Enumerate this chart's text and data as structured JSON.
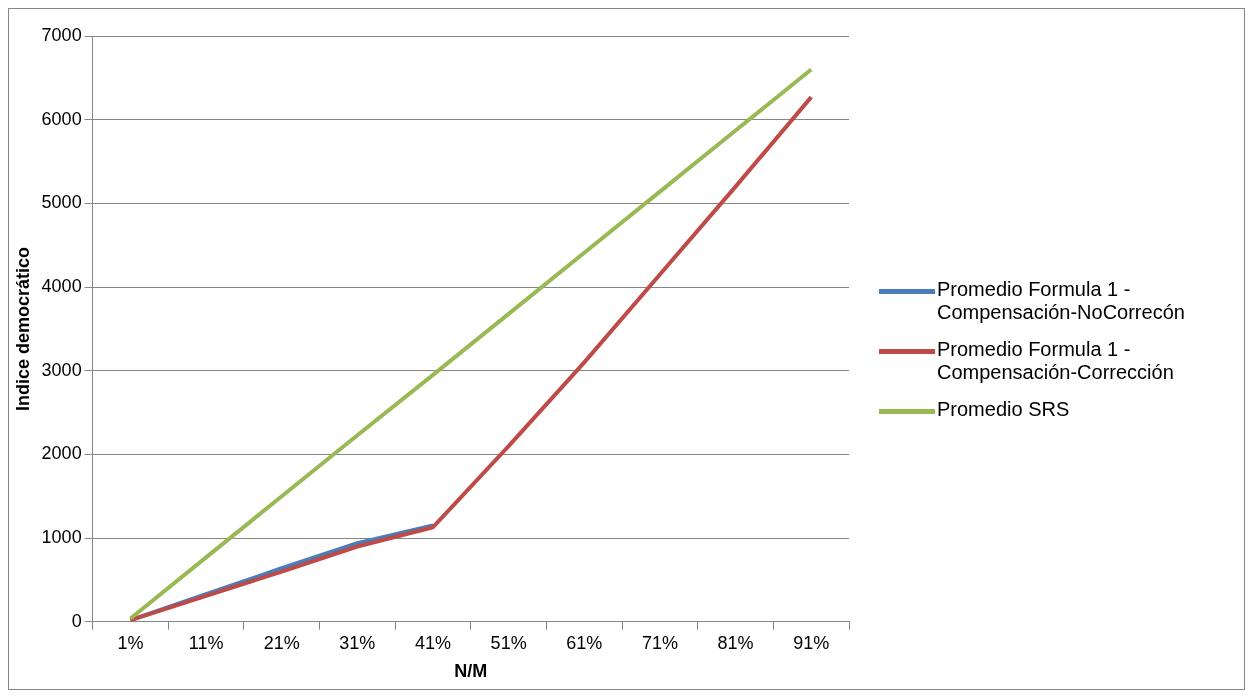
{
  "chart_data": {
    "type": "line",
    "xlabel": "N/M",
    "ylabel": "Indice democrático",
    "categories": [
      "1%",
      "11%",
      "21%",
      "31%",
      "41%",
      "51%",
      "61%",
      "71%",
      "81%",
      "91%"
    ],
    "series": [
      {
        "name": "Promedio Formula 1 - Compensación-NoCorrecón",
        "color": "#4a7ebb",
        "values": [
          20,
          330,
          640,
          940,
          1150,
          null,
          null,
          null,
          null,
          null
        ]
      },
      {
        "name": "Promedio Formula 1 - Compensación-Corrección",
        "color": "#be4b48",
        "values": [
          20,
          310,
          600,
          900,
          1130,
          2100,
          3100,
          4150,
          5200,
          6270
        ]
      },
      {
        "name": "Promedio SRS",
        "color": "#98b954",
        "values": [
          40,
          770,
          1500,
          2230,
          2950,
          3680,
          4410,
          5140,
          5870,
          6600
        ]
      }
    ],
    "ylim": [
      0,
      7000
    ],
    "yticks": [
      0,
      1000,
      2000,
      3000,
      4000,
      5000,
      6000,
      7000
    ],
    "grid": "y",
    "legend": "right",
    "marker": "none",
    "line_style": "solid"
  }
}
